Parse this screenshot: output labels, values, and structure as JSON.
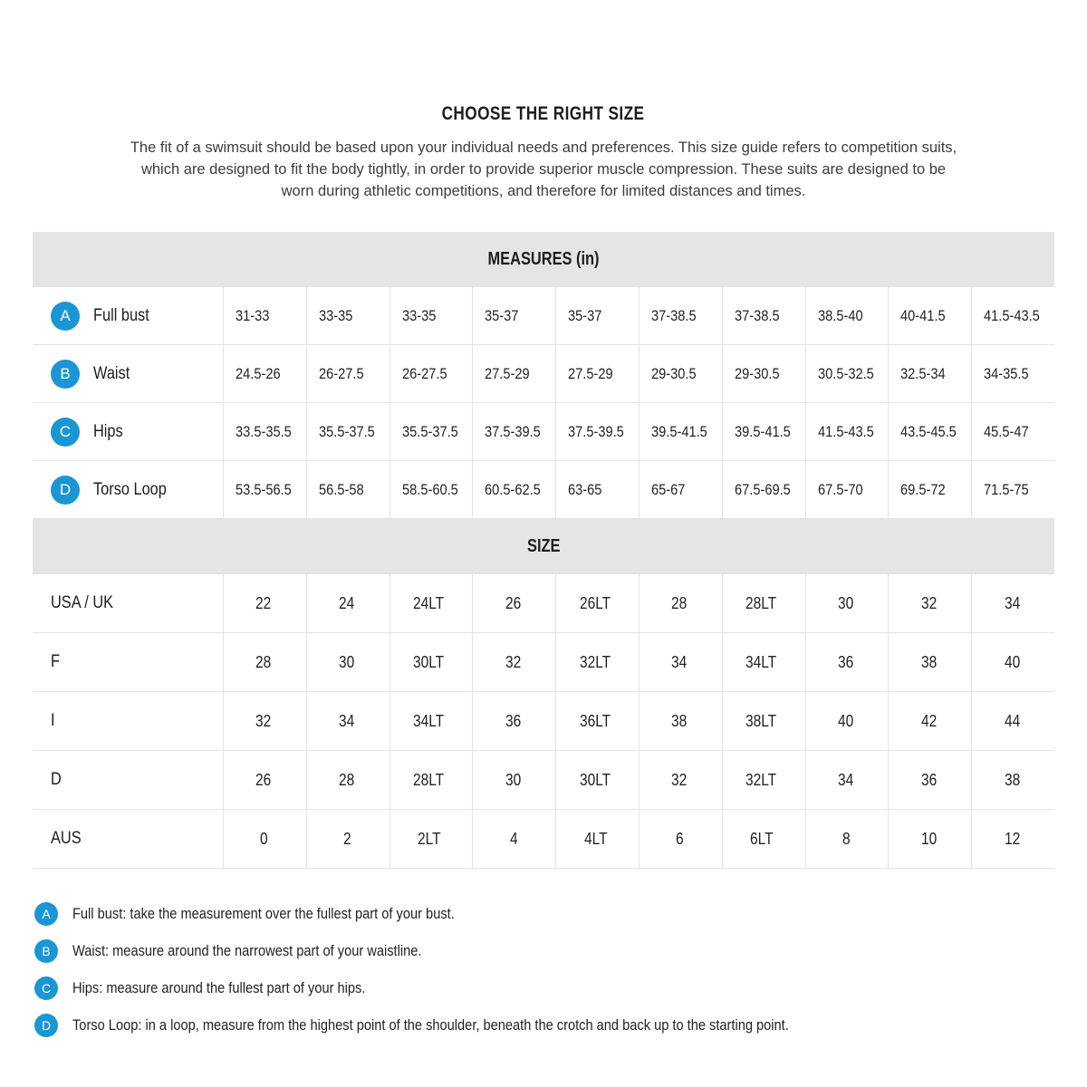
{
  "page": {
    "title": "CHOOSE THE RIGHT SIZE",
    "intro": "The fit of a swimsuit should be based upon your individual needs and preferences. This size guide refers to competition suits, which are designed to fit the body tightly, in order to provide superior muscle compression. These suits are designed to be worn during athletic competitions, and therefore for limited distances and times."
  },
  "colors": {
    "accent_blue": "#1a96d4",
    "section_header_gray": "#e5e5e5",
    "grid_border": "#e3e3e3",
    "text": "#1f1f1f"
  },
  "measures_table": {
    "header": "MEASURES (in)",
    "rows": [
      {
        "badge": "A",
        "label": "Full bust",
        "values": [
          "31-33",
          "33-35",
          "33-35",
          "35-37",
          "35-37",
          "37-38.5",
          "37-38.5",
          "38.5-40",
          "40-41.5",
          "41.5-43.5"
        ]
      },
      {
        "badge": "B",
        "label": "Waist",
        "values": [
          "24.5-26",
          "26-27.5",
          "26-27.5",
          "27.5-29",
          "27.5-29",
          "29-30.5",
          "29-30.5",
          "30.5-32.5",
          "32.5-34",
          "34-35.5"
        ]
      },
      {
        "badge": "C",
        "label": "Hips",
        "values": [
          "33.5-35.5",
          "35.5-37.5",
          "35.5-37.5",
          "37.5-39.5",
          "37.5-39.5",
          "39.5-41.5",
          "39.5-41.5",
          "41.5-43.5",
          "43.5-45.5",
          "45.5-47"
        ]
      },
      {
        "badge": "D",
        "label": "Torso Loop",
        "values": [
          "53.5-56.5",
          "56.5-58",
          "58.5-60.5",
          "60.5-62.5",
          "63-65",
          "65-67",
          "67.5-69.5",
          "67.5-70",
          "69.5-72",
          "71.5-75"
        ]
      }
    ]
  },
  "size_table": {
    "header": "SIZE",
    "rows": [
      {
        "label": "USA / UK",
        "values": [
          "22",
          "24",
          "24LT",
          "26",
          "26LT",
          "28",
          "28LT",
          "30",
          "32",
          "34"
        ]
      },
      {
        "label": "F",
        "values": [
          "28",
          "30",
          "30LT",
          "32",
          "32LT",
          "34",
          "34LT",
          "36",
          "38",
          "40"
        ]
      },
      {
        "label": "I",
        "values": [
          "32",
          "34",
          "34LT",
          "36",
          "36LT",
          "38",
          "38LT",
          "40",
          "42",
          "44"
        ]
      },
      {
        "label": "D",
        "values": [
          "26",
          "28",
          "28LT",
          "30",
          "30LT",
          "32",
          "32LT",
          "34",
          "36",
          "38"
        ]
      },
      {
        "label": "AUS",
        "values": [
          "0",
          "2",
          "2LT",
          "4",
          "4LT",
          "6",
          "6LT",
          "8",
          "10",
          "12"
        ]
      }
    ]
  },
  "footnotes": [
    {
      "badge": "A",
      "text": "Full bust: take the measurement over the fullest part of your bust."
    },
    {
      "badge": "B",
      "text": "Waist: measure around the narrowest part of your waistline."
    },
    {
      "badge": "C",
      "text": "Hips: measure around the fullest part of your hips."
    },
    {
      "badge": "D",
      "text": "Torso Loop: in a loop, measure from the highest point of the shoulder, beneath the crotch and back up to the starting point."
    }
  ]
}
